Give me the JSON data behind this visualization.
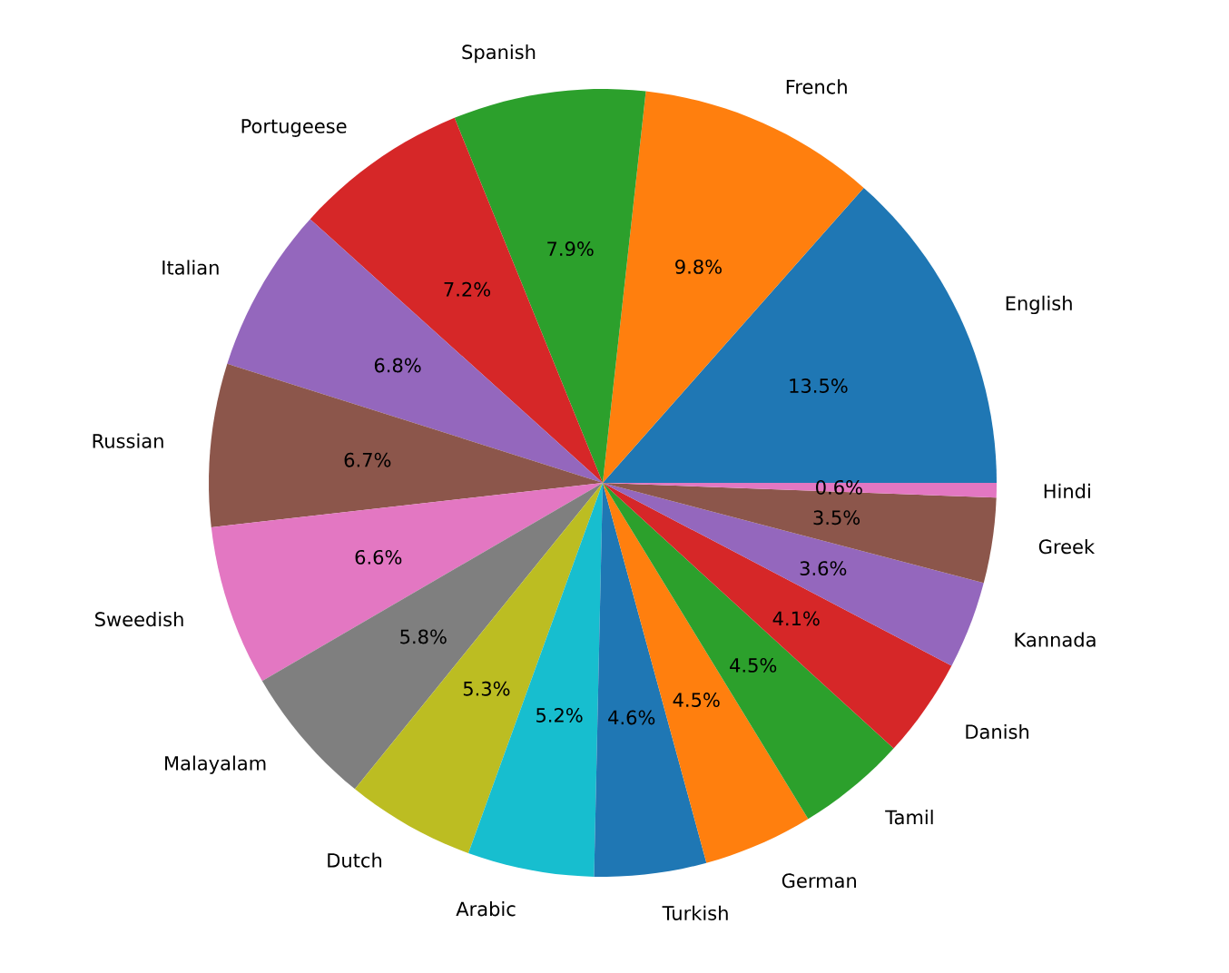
{
  "chart_data": {
    "type": "pie",
    "categories": [
      "English",
      "French",
      "Spanish",
      "Portugeese",
      "Italian",
      "Russian",
      "Sweedish",
      "Malayalam",
      "Dutch",
      "Arabic",
      "Turkish",
      "German",
      "Tamil",
      "Danish",
      "Kannada",
      "Greek",
      "Hindi"
    ],
    "values": [
      13.5,
      9.8,
      7.9,
      7.2,
      6.8,
      6.7,
      6.6,
      5.8,
      5.3,
      5.2,
      4.6,
      4.5,
      4.5,
      4.1,
      3.6,
      3.5,
      0.6
    ],
    "value_labels": [
      "13.5%",
      "9.8%",
      "7.9%",
      "7.2%",
      "6.8%",
      "6.7%",
      "6.6%",
      "5.8%",
      "5.3%",
      "5.2%",
      "4.6%",
      "4.5%",
      "4.5%",
      "4.1%",
      "3.6%",
      "3.5%",
      "0.6%"
    ],
    "colors": [
      "#1f77b4",
      "#ff7f0e",
      "#2ca02c",
      "#d62728",
      "#9467bd",
      "#8c564b",
      "#e377c2",
      "#7f7f7f",
      "#bcbd22",
      "#17becf",
      "#1f77b4",
      "#ff7f0e",
      "#2ca02c",
      "#d62728",
      "#9467bd",
      "#8c564b",
      "#e377c2"
    ]
  }
}
